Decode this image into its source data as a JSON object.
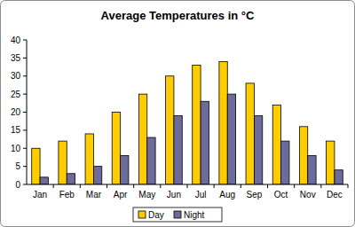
{
  "chart_data": {
    "type": "bar",
    "title": "Average Temperatures in °C",
    "categories": [
      "Jan",
      "Feb",
      "Mar",
      "Apr",
      "May",
      "Jun",
      "Jul",
      "Aug",
      "Sep",
      "Oct",
      "Nov",
      "Dec"
    ],
    "series": [
      {
        "name": "Day",
        "color": "#ffcc00",
        "values": [
          10,
          12,
          14,
          20,
          25,
          30,
          33,
          34,
          28,
          22,
          16,
          12
        ]
      },
      {
        "name": "Night",
        "color": "#6b6b9c",
        "values": [
          2,
          3,
          5,
          8,
          13,
          19,
          23,
          25,
          19,
          12,
          8,
          4
        ]
      }
    ],
    "ylim": [
      0,
      40
    ],
    "yticks": [
      0,
      5,
      10,
      15,
      20,
      25,
      30,
      35,
      40
    ],
    "grid": false,
    "legend": "bottom"
  }
}
